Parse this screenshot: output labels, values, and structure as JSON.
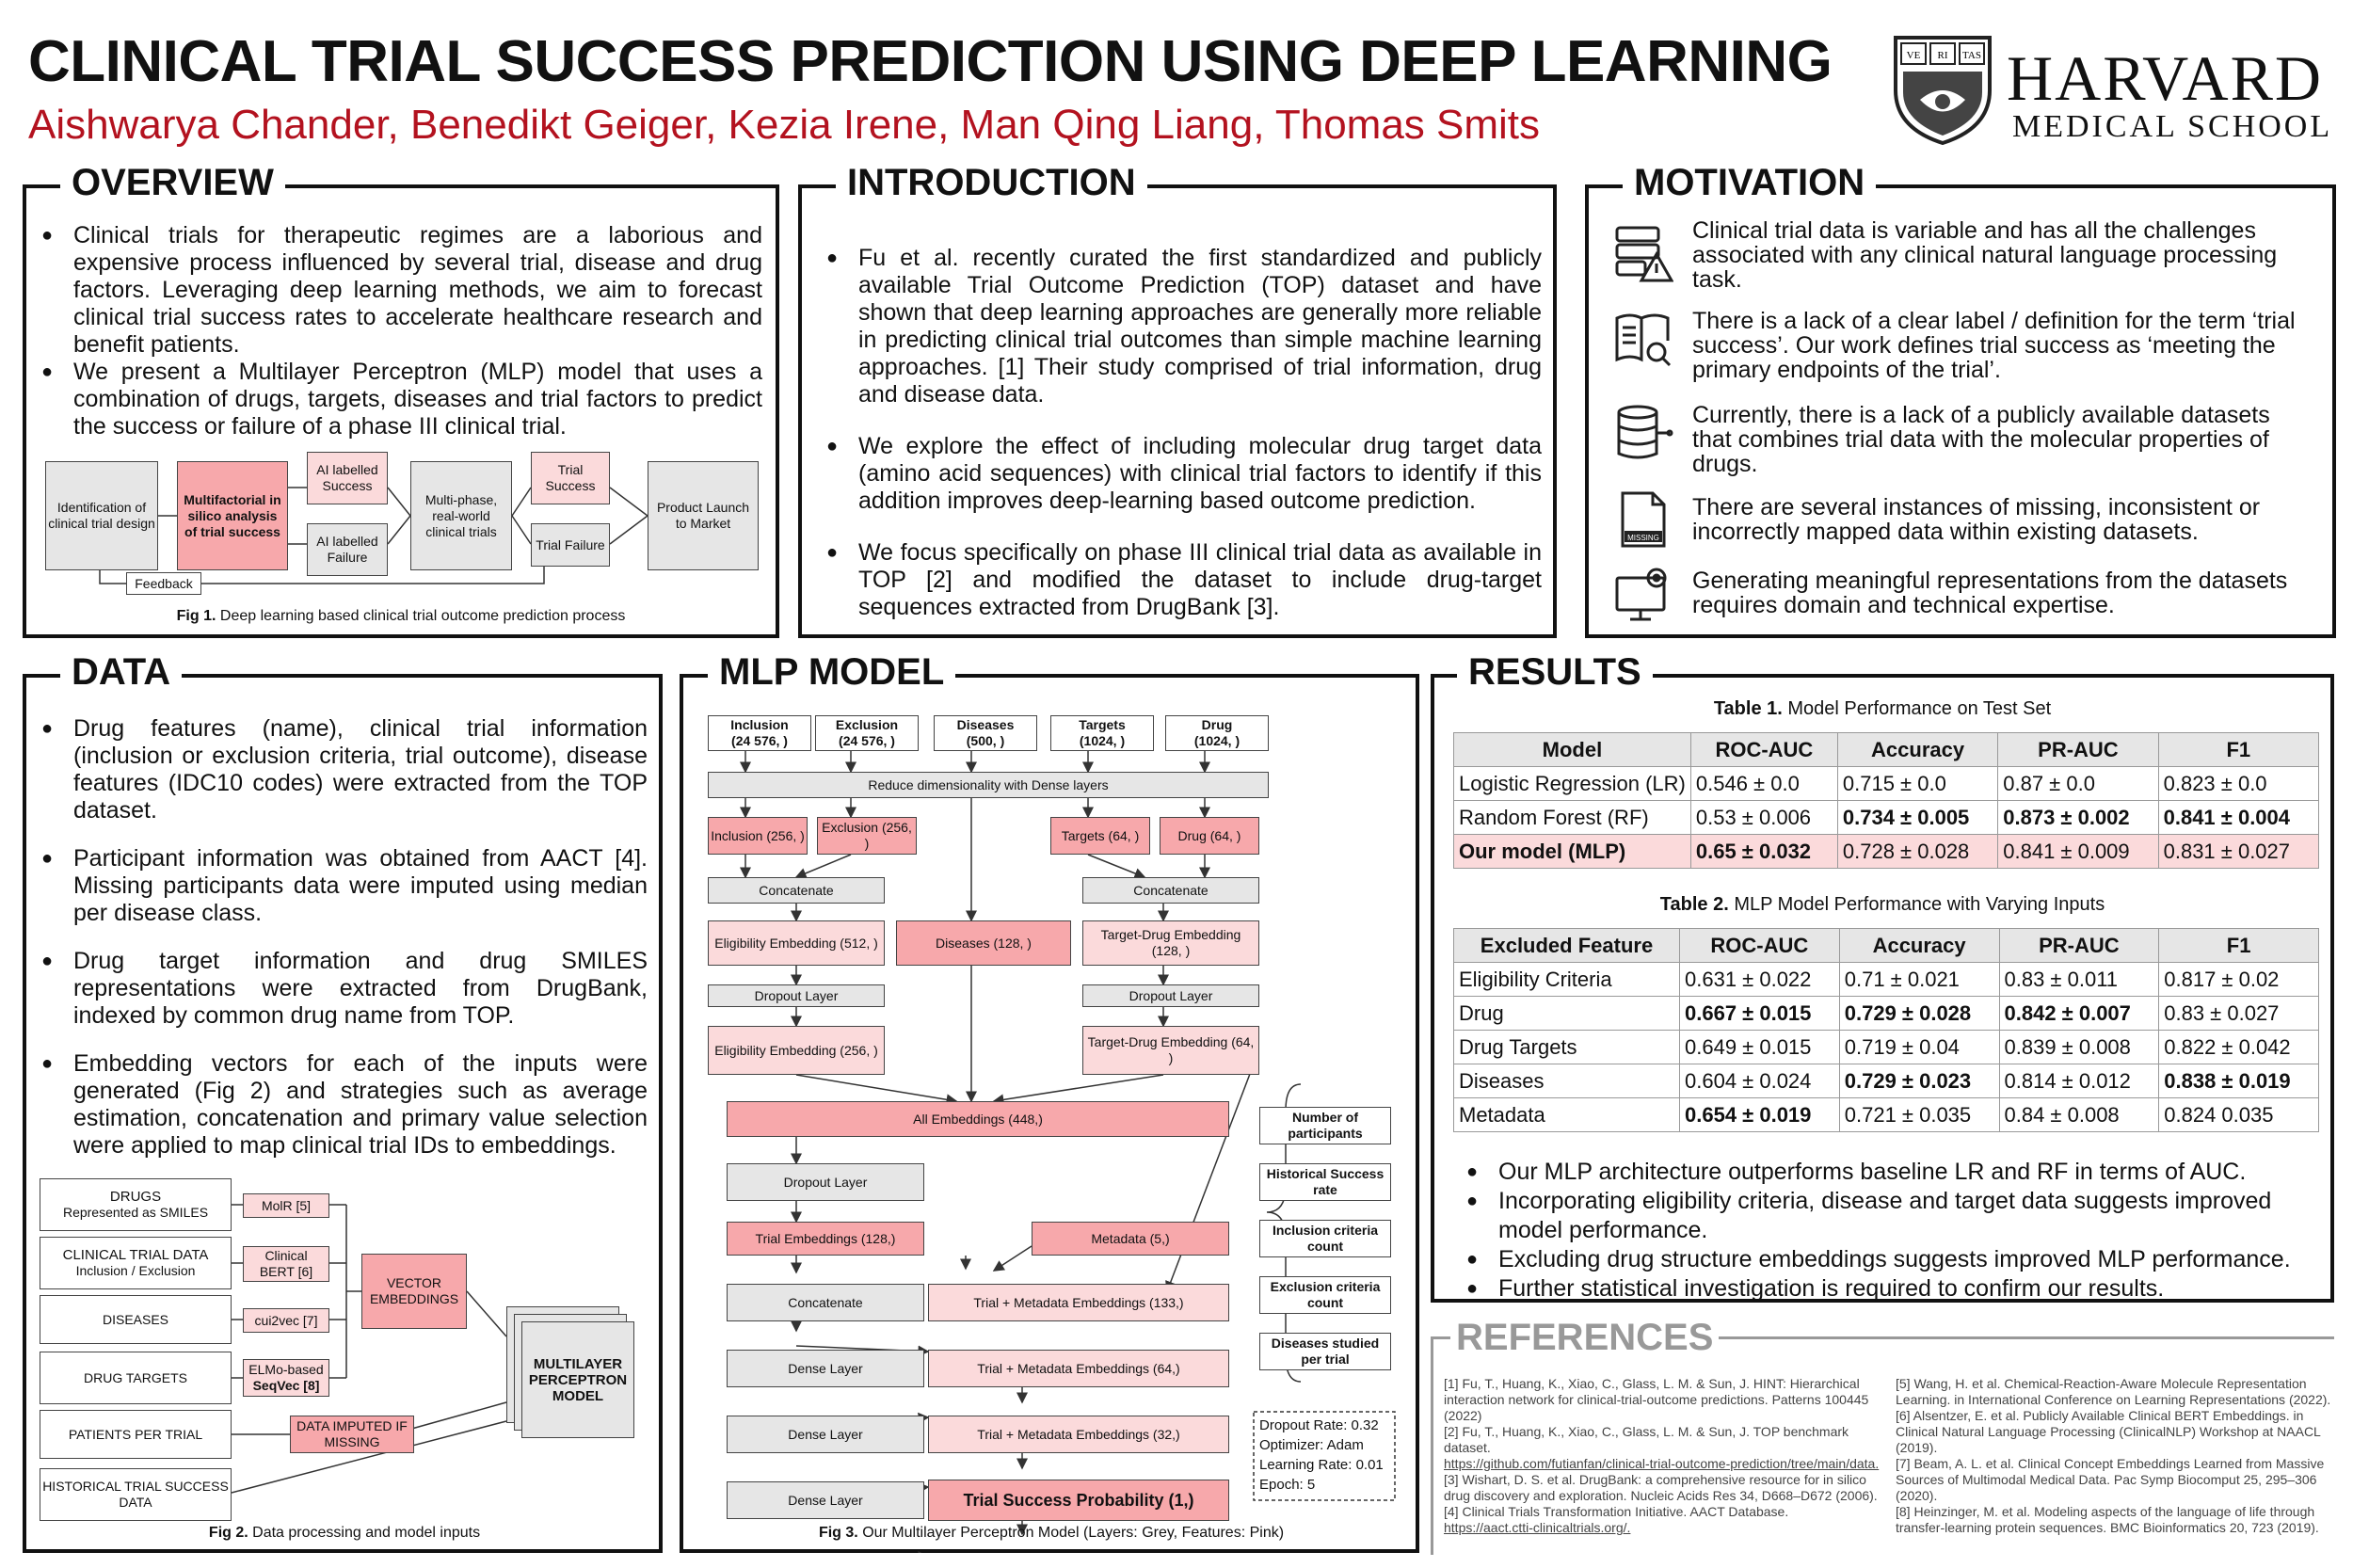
{
  "header": {
    "title": "CLINICAL TRIAL SUCCESS PREDICTION USING DEEP LEARNING",
    "authors": "Aishwarya Chander, Benedikt Geiger, Kezia Irene, Man Qing Liang, Thomas Smits",
    "logo_name": "HARVARD",
    "logo_school": "MEDICAL SCHOOL",
    "shield_text": "VE RI TAS"
  },
  "overview": {
    "title": "OVERVIEW",
    "b1": "Clinical trials for therapeutic regimes are a laborious and expensive process influenced by several trial, disease and drug factors. Leveraging deep learning methods, we aim to forecast clinical trial success rates to accelerate healthcare research and benefit patients.",
    "b2": "We present a Multilayer Perceptron (MLP) model that uses a combination of drugs, targets, diseases and trial factors to predict the success or failure of a phase III clinical trial.",
    "fig": {
      "n1": "Identification of clinical trial design",
      "n2": "Multifactorial in silico analysis of trial success",
      "n3": "AI labelled Success",
      "n4": "AI labelled Failure",
      "n5": "Multi-phase, real-world clinical trials",
      "n6": "Trial Success",
      "n7": "Trial Failure",
      "n8": "Product Launch to Market",
      "feedback": "Feedback",
      "caption_label": "Fig 1.",
      "caption": "Deep learning based clinical trial outcome prediction process"
    }
  },
  "introduction": {
    "title": "INTRODUCTION",
    "b1": "Fu et al. recently curated the first standardized and publicly available Trial Outcome Prediction (TOP) dataset and have shown that deep learning approaches are generally more reliable in predicting clinical trial outcomes than simple machine learning approaches. [1] Their study comprised of trial information, drug and disease data.",
    "b2": "We explore the effect of including molecular drug target data (amino acid sequences) with clinical trial factors to identify if this addition improves deep-learning based outcome prediction.",
    "b3": "We focus specifically on phase III clinical trial data as available in TOP [2] and modified the dataset to include drug-target sequences extracted from DrugBank [3]."
  },
  "motivation": {
    "title": "MOTIVATION",
    "items": [
      {
        "icon": "data-warning-icon",
        "text": "Clinical trial data is variable and has all the challenges associated with any clinical natural language processing task."
      },
      {
        "icon": "book-search-icon",
        "text": "There is a lack of a clear label / definition for the term ‘trial success’. Our work defines trial success as ‘meeting the primary endpoints of the trial’."
      },
      {
        "icon": "database-icon",
        "text": "Currently, there is a lack of a publicly available datasets that combines trial data with the molecular properties of drugs."
      },
      {
        "icon": "missing-file-icon",
        "text": "There are several instances of missing, inconsistent or incorrectly mapped data within existing datasets."
      },
      {
        "icon": "computer-gear-icon",
        "text": "Generating meaningful representations from the datasets requires domain and technical expertise."
      }
    ],
    "missing_label": "MISSING"
  },
  "data": {
    "title": "DATA",
    "b1": "Drug features (name), clinical trial information (inclusion or exclusion criteria, trial outcome), disease features (IDC10 codes) were extracted from the TOP dataset.",
    "b2": "Participant information was obtained from AACT [4]. Missing participants data were imputed using median per disease class.",
    "b3": "Drug target information and drug SMILES representations were extracted from DrugBank, indexed by common drug name from TOP.",
    "b4": "Embedding vectors for each of the inputs were generated (Fig 2) and strategies such as average estimation, concatenation and primary value selection were applied to map clinical trial IDs to embeddings.",
    "fig": {
      "drugs": "DRUGS",
      "drugs_sub": "Represented as SMILES",
      "ctd": "CLINICAL TRIAL DATA",
      "ctd_sub": "Inclusion / Exclusion",
      "diseases": "DISEASES",
      "targets": "DRUG TARGETS",
      "patients": "PATIENTS PER TRIAL",
      "historical": "HISTORICAL TRIAL SUCCESS DATA",
      "molr": "MolR [5]",
      "cbert": "Clinical BERT [6]",
      "cui": "cui2vec [7]",
      "elmo": "ELMo-based",
      "seqvec": "SeqVec [8]",
      "imputed": "DATA IMPUTED IF MISSING",
      "vector": "VECTOR EMBEDDINGS",
      "mlp": "MULTILAYER PERCEPTRON MODEL",
      "caption_label": "Fig 2.",
      "caption": "Data processing and model inputs"
    }
  },
  "mlp": {
    "title": "MLP MODEL",
    "inputs": [
      "Inclusion",
      "Exclusion",
      "Diseases",
      "Targets",
      "Drug"
    ],
    "input_dims": [
      "(24 576, )",
      "(24 576, )",
      "(500, )",
      "(1024, )",
      "(1024, )"
    ],
    "reduce": "Reduce dimensionality with Dense layers",
    "inc256": "Inclusion (256, )",
    "exc256": "Exclusion (256, )",
    "tar64": "Targets (64, )",
    "drug64": "Drug (64, )",
    "concat": "Concatenate",
    "elig512": "Eligibility Embedding (512, )",
    "dis128": "Diseases (128, )",
    "td128": "Target-Drug Embedding (128, )",
    "dropout": "Dropout Layer",
    "elig256": "Eligibility Embedding (256, )",
    "td64": "Target-Drug Embedding (64, )",
    "all": "All Embeddings (448,)",
    "dropout2": "Dropout Layer",
    "trial128": "Trial Embeddings (128,)",
    "meta5": "Metadata  (5,)",
    "concat2": "Concatenate",
    "tm133": "Trial + Metadata Embeddings (133,)",
    "dense": "Dense Layer",
    "tm64": "Trial + Metadata Embeddings (64,)",
    "tm32": "Trial + Metadata Embeddings (32,)",
    "prob": "Trial Success Probability (1,)",
    "meta_items": [
      "Number of participants",
      "Historical Success rate",
      "Inclusion criteria count",
      "Exclusion criteria count",
      "Diseases studied per trial"
    ],
    "hyper": [
      "Dropout Rate: 0.32",
      "Optimizer: Adam",
      "Learning Rate: 0.01",
      "Epoch: 5"
    ],
    "caption_label": "Fig 3.",
    "caption": "Our Multilayer Perceptron Model (Layers: Grey, Features: Pink)"
  },
  "results": {
    "title": "RESULTS",
    "t1_label": "Table 1.",
    "t1_caption": "Model Performance on Test Set",
    "t1_headers": [
      "Model",
      "ROC-AUC",
      "Accuracy",
      "PR-AUC",
      "F1"
    ],
    "t1_rows": [
      [
        "Logistic Regression (LR)",
        "0.546 ± 0.0",
        "0.715 ± 0.0",
        "0.87 ± 0.0",
        "0.823 ± 0.0"
      ],
      [
        "Random Forest (RF)",
        "0.53 ± 0.006",
        "0.734 ± 0.005",
        "0.873 ± 0.002",
        "0.841 ± 0.004"
      ],
      [
        "Our model (MLP)",
        "0.65 ± 0.032",
        "0.728 ± 0.028",
        "0.841 ± 0.009",
        "0.831 ± 0.027"
      ]
    ],
    "t2_label": "Table 2.",
    "t2_caption": "MLP Model Performance with Varying Inputs",
    "t2_headers": [
      "Excluded Feature",
      "ROC-AUC",
      "Accuracy",
      "PR-AUC",
      "F1"
    ],
    "t2_rows": [
      [
        "Eligibility Criteria",
        "0.631 ± 0.022",
        "0.71 ± 0.021",
        "0.83 ± 0.011",
        "0.817 ± 0.02"
      ],
      [
        "Drug",
        "0.667 ± 0.015",
        "0.729 ± 0.028",
        "0.842 ± 0.007",
        "0.83 ± 0.027"
      ],
      [
        "Drug Targets",
        "0.649 ± 0.015",
        "0.719 ± 0.04",
        "0.839 ± 0.008",
        "0.822 ± 0.042"
      ],
      [
        "Diseases",
        "0.604 ± 0.024",
        "0.729 ± 0.023",
        "0.814 ± 0.012",
        "0.838 ± 0.019"
      ],
      [
        "Metadata",
        "0.654 ± 0.019",
        "0.721 ± 0.035",
        "0.84 ± 0.008",
        "0.824  0.035"
      ]
    ],
    "bullets": [
      "Our MLP architecture outperforms baseline LR and RF in terms of AUC.",
      "Incorporating eligibility criteria, disease and target data suggests improved model performance.",
      "Excluding drug structure embeddings suggests improved MLP performance.",
      "Further statistical investigation is required to confirm our results."
    ]
  },
  "references": {
    "title": "REFERENCES",
    "left": [
      "[1] Fu, T., Huang, K., Xiao, C., Glass, L. M. & Sun, J. HINT: Hierarchical interaction network for clinical-trial-outcome predictions. Patterns 100445 (2022)",
      "[2] Fu, T., Huang, K., Xiao, C., Glass, L. M. & Sun, J. TOP benchmark dataset.",
      "https://github.com/futianfan/clinical-trial-outcome-prediction/tree/main/data.",
      "[3] Wishart, D. S. et al. DrugBank: a comprehensive resource for in silico drug discovery and exploration. Nucleic Acids Res 34, D668–D672 (2006).",
      "[4] Clinical Trials Transformation Initiative. AACT Database.",
      "https://aact.ctti-clinicaltrials.org/."
    ],
    "right": [
      "[5] Wang, H. et al. Chemical-Reaction-Aware Molecule Representation Learning. in International Conference on Learning Representations (2022).",
      "[6] Alsentzer, E. et al. Publicly Available Clinical BERT Embeddings. in Clinical Natural Language Processing (ClinicalNLP) Workshop at NAACL (2019).",
      "[7] Beam, A. L. et al. Clinical Concept Embeddings Learned from Massive Sources of Multimodal Medical Data. Pac Symp Biocomput 25, 295–306 (2020).",
      "[8] Heinzinger, M. et al. Modeling aspects of the language of life through transfer-learning protein sequences. BMC Bioinformatics 20, 723 (2019)."
    ]
  },
  "colors": {
    "accent_red": "#b3121f",
    "feature_pink": "#f7a8ab",
    "light_pink": "#fbdadb",
    "layer_grey": "#e6e6e6"
  }
}
